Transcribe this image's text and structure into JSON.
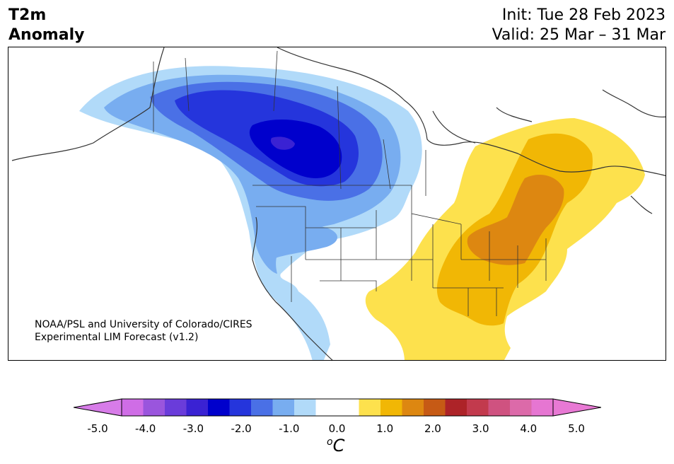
{
  "title": {
    "left_line1": "T2m",
    "left_line2": "Anomaly",
    "init": "Init: Tue 28 Feb 2023",
    "valid": "Valid: 25 Mar – 31 Mar"
  },
  "credit": {
    "line1": "NOAA/PSL and University of Colorado/CIRES",
    "line2": "Experimental LIM Forecast (v1.2)"
  },
  "colorbar": {
    "unit_base": "C",
    "unit_sup": "o",
    "tick_labels": [
      "-5.0",
      "-4.0",
      "-3.0",
      "-2.0",
      "-1.0",
      "0.0",
      "1.0",
      "2.0",
      "3.0",
      "4.0",
      "5.0"
    ],
    "colors": [
      "#cf6de6",
      "#9a55dd",
      "#6a3cda",
      "#3a22d3",
      "#0000cc",
      "#2535dc",
      "#4a70e6",
      "#78adf0",
      "#b1daf9",
      "#ffffff",
      "#ffffff",
      "#fde14d",
      "#f1b705",
      "#dd8711",
      "#c65a15",
      "#ad2328",
      "#c23a4d",
      "#cf5280",
      "#dc6aa9",
      "#e676d2"
    ],
    "under_color": "#d77ce8",
    "over_color": "#e879d4"
  },
  "anomaly_colors": {
    "cold_1": "#b1daf9",
    "cold_2": "#78adf0",
    "cold_3": "#4a70e6",
    "cold_4": "#2535dc",
    "cold_5": "#0000cc",
    "cold_6": "#3a22d3",
    "warm_1": "#fde14d",
    "warm_2": "#f1b705",
    "warm_3": "#dd8711"
  }
}
